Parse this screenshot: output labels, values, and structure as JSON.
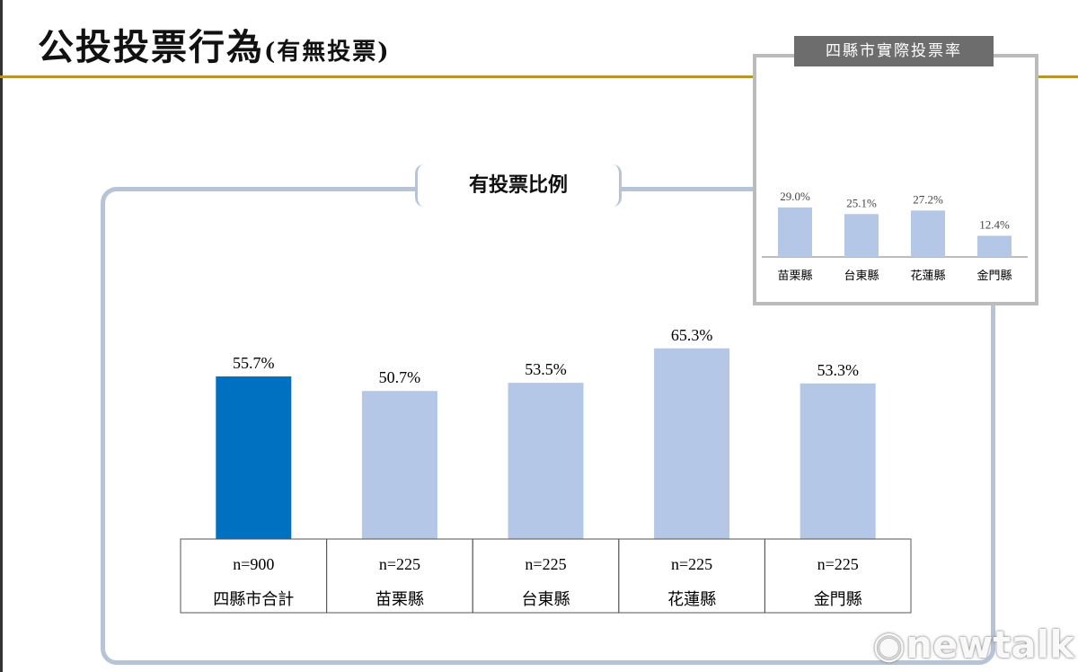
{
  "header": {
    "title": "公投投票行為",
    "subtitle": "(有無投票)"
  },
  "chart_data": [
    {
      "type": "bar",
      "title": "有投票比例",
      "categories": [
        "四縣市合計",
        "苗栗縣",
        "台東縣",
        "花蓮縣",
        "金門縣"
      ],
      "sample_sizes": [
        "n=900",
        "n=225",
        "n=225",
        "n=225",
        "n=225"
      ],
      "values": [
        55.7,
        50.7,
        53.5,
        65.3,
        53.3
      ],
      "labels": [
        "55.7%",
        "50.7%",
        "53.5%",
        "65.3%",
        "53.3%"
      ],
      "colors": [
        "#0070c0",
        "#b4c7e7",
        "#b4c7e7",
        "#b4c7e7",
        "#b4c7e7"
      ],
      "ylim": [
        0,
        100
      ],
      "grid": false
    },
    {
      "type": "bar",
      "title": "四縣市實際投票率",
      "categories": [
        "苗栗縣",
        "台東縣",
        "花蓮縣",
        "金門縣"
      ],
      "values": [
        29.0,
        25.1,
        27.2,
        12.4
      ],
      "labels": [
        "29.0%",
        "25.1%",
        "27.2%",
        "12.4%"
      ],
      "colors": [
        "#b4c7e7"
      ],
      "grid": false
    }
  ],
  "logo": "newtalk"
}
